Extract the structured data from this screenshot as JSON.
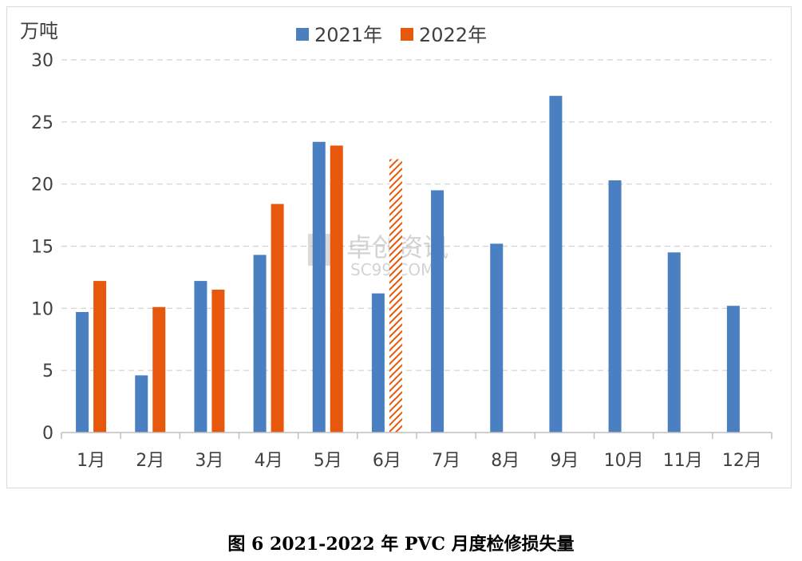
{
  "chart_data": {
    "type": "bar",
    "ylabel": "万吨",
    "ylim": [
      0,
      30
    ],
    "yticks": [
      0,
      5,
      10,
      15,
      20,
      25,
      30
    ],
    "grid": true,
    "legend_position": "top-center",
    "categories": [
      "1月",
      "2月",
      "3月",
      "4月",
      "5月",
      "6月",
      "7月",
      "8月",
      "9月",
      "10月",
      "11月",
      "12月"
    ],
    "series": [
      {
        "name": "2021年",
        "color": "#4a7fc1",
        "values": [
          9.7,
          4.6,
          12.2,
          14.3,
          23.4,
          11.2,
          19.5,
          15.2,
          27.1,
          20.3,
          14.5,
          10.2
        ]
      },
      {
        "name": "2022年",
        "color": "#e8580c",
        "values": [
          12.2,
          10.1,
          11.5,
          18.4,
          23.1,
          22.0,
          null,
          null,
          null,
          null,
          null,
          null
        ],
        "hatched_categories": [
          "6月"
        ]
      }
    ]
  },
  "watermark": {
    "line1": "卓创资讯",
    "line2": "SC99.COM"
  },
  "caption": "图 6 2021-2022 年 PVC 月度检修损失量"
}
